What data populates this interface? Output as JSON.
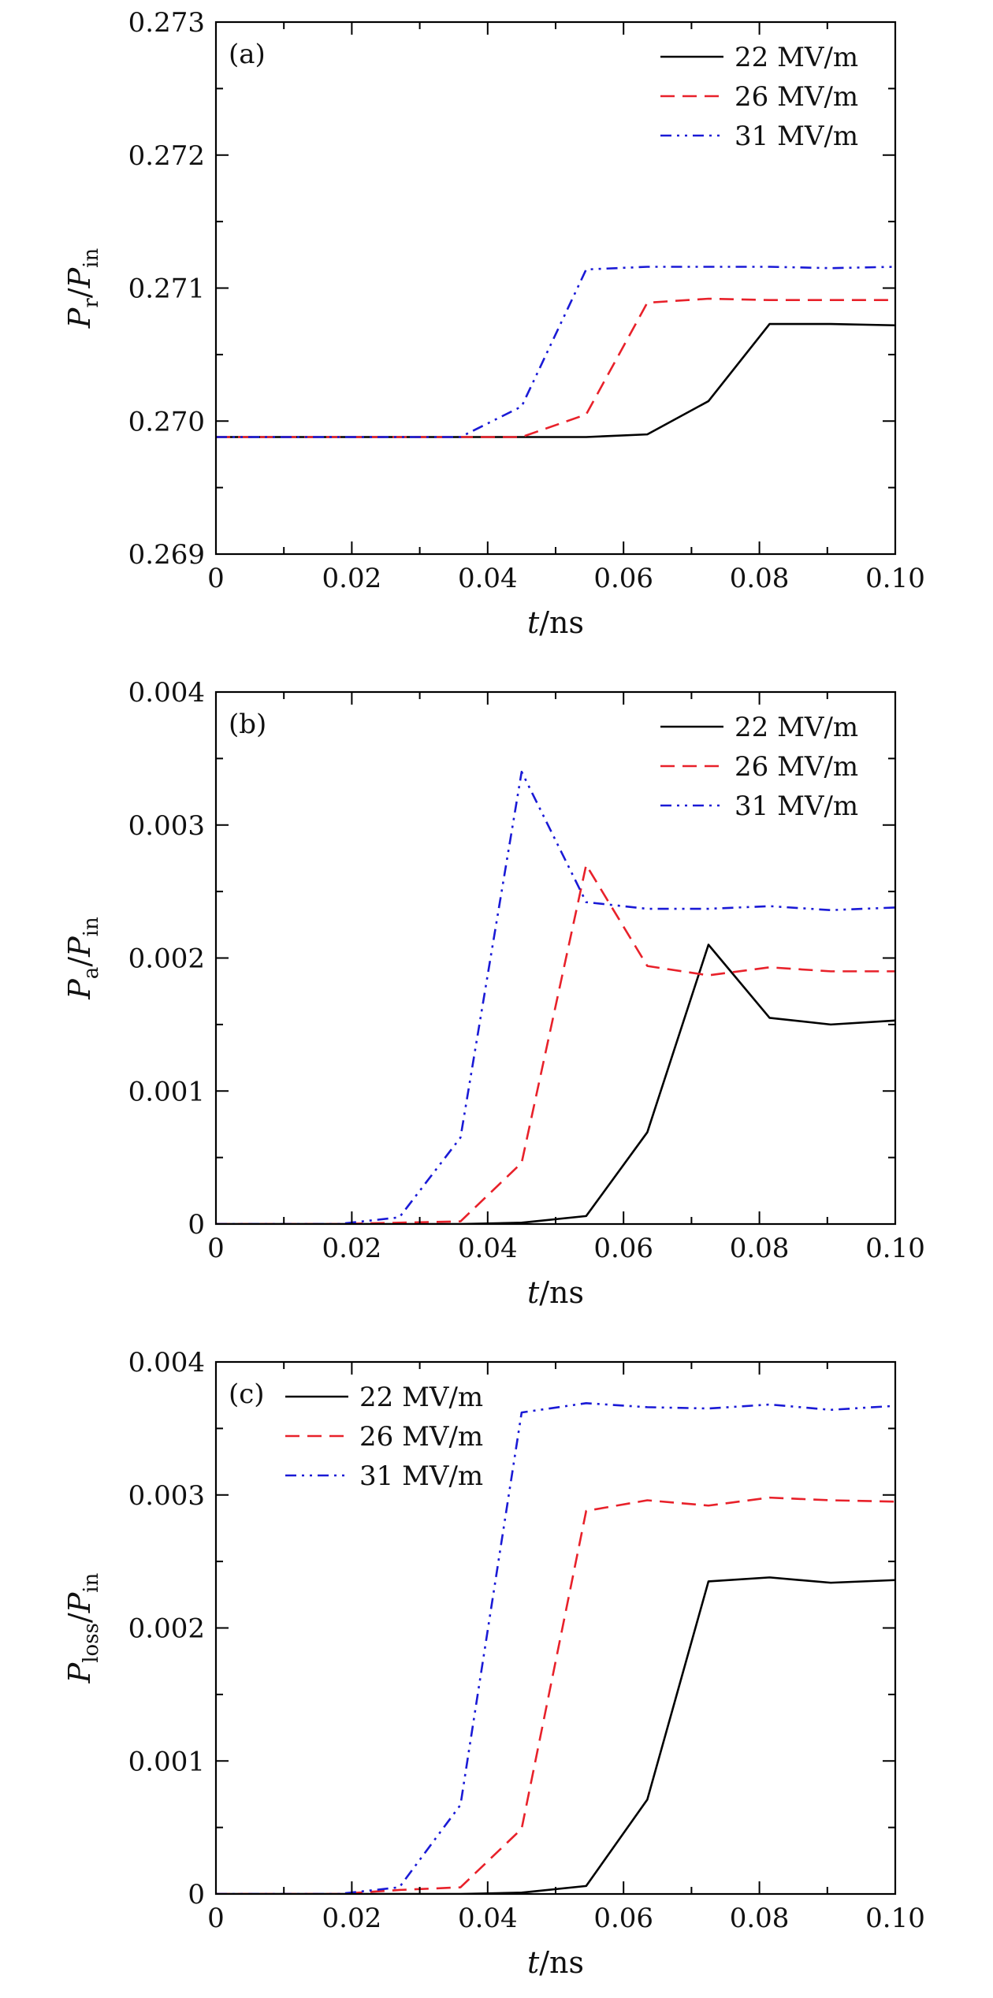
{
  "figure": {
    "background": "#ffffff",
    "axis_color": "#000000"
  },
  "chart_data": [
    {
      "type": "line",
      "panel": "(a)",
      "xlabel": {
        "var": "t",
        "unit": "/ns"
      },
      "ylabel": {
        "var": "P",
        "sub": "r",
        "mid": "/",
        "var2": "P",
        "sub2": "in"
      },
      "xlim": [
        0,
        0.1
      ],
      "ylim": [
        0.269,
        0.273
      ],
      "xticks": [
        "0",
        "0.02",
        "0.04",
        "0.06",
        "0.08",
        "0.10"
      ],
      "xtick_values": [
        0,
        0.02,
        0.04,
        0.06,
        0.08,
        0.1
      ],
      "yticks": [
        "0.269",
        "0.270",
        "0.271",
        "0.272",
        "0.273"
      ],
      "ytick_values": [
        0.269,
        0.27,
        0.271,
        0.272,
        0.273
      ],
      "legend_position": "top-right",
      "x": [
        0,
        0.009,
        0.018,
        0.027,
        0.036,
        0.045,
        0.0545,
        0.0635,
        0.0725,
        0.0815,
        0.0905,
        0.1
      ],
      "series": [
        {
          "name": "22 MV/m",
          "color": "#000000",
          "dash": "solid",
          "values": [
            0.26988,
            0.26988,
            0.26988,
            0.26988,
            0.26988,
            0.26988,
            0.26988,
            0.2699,
            0.27015,
            0.27073,
            0.27073,
            0.27072
          ]
        },
        {
          "name": "26 MV/m",
          "color": "#e8212a",
          "dash": "dash",
          "values": [
            0.26988,
            0.26988,
            0.26988,
            0.26988,
            0.26988,
            0.26988,
            0.27005,
            0.27089,
            0.27092,
            0.27091,
            0.27091,
            0.27091
          ]
        },
        {
          "name": "31 MV/m",
          "color": "#1a1ad6",
          "dash": "dashdotdot",
          "values": [
            0.26988,
            0.26988,
            0.26988,
            0.26988,
            0.26988,
            0.27011,
            0.27114,
            0.27116,
            0.27116,
            0.27116,
            0.27115,
            0.27116
          ]
        }
      ]
    },
    {
      "type": "line",
      "panel": "(b)",
      "xlabel": {
        "var": "t",
        "unit": "/ns"
      },
      "ylabel": {
        "var": "P",
        "sub": "a",
        "mid": "/",
        "var2": "P",
        "sub2": "in"
      },
      "xlim": [
        0,
        0.1
      ],
      "ylim": [
        0,
        0.004
      ],
      "xticks": [
        "0",
        "0.02",
        "0.04",
        "0.06",
        "0.08",
        "0.10"
      ],
      "xtick_values": [
        0,
        0.02,
        0.04,
        0.06,
        0.08,
        0.1
      ],
      "yticks": [
        "0",
        "0.001",
        "0.002",
        "0.003",
        "0.004"
      ],
      "ytick_values": [
        0,
        0.001,
        0.002,
        0.003,
        0.004
      ],
      "legend_position": "top-right",
      "x": [
        0,
        0.009,
        0.018,
        0.027,
        0.036,
        0.045,
        0.0545,
        0.0635,
        0.0725,
        0.0815,
        0.0905,
        0.1
      ],
      "series": [
        {
          "name": "22 MV/m",
          "color": "#000000",
          "dash": "solid",
          "values": [
            0,
            0,
            0,
            0,
            0,
            1e-05,
            6e-05,
            0.00069,
            0.0021,
            0.00155,
            0.0015,
            0.00153
          ]
        },
        {
          "name": "26 MV/m",
          "color": "#e8212a",
          "dash": "dash",
          "values": [
            0,
            0,
            0,
            1e-05,
            2e-05,
            0.00046,
            0.0027,
            0.00194,
            0.00187,
            0.00193,
            0.0019,
            0.0019
          ]
        },
        {
          "name": "31 MV/m",
          "color": "#1a1ad6",
          "dash": "dashdotdot",
          "values": [
            0,
            0,
            0,
            5e-05,
            0.00065,
            0.0034,
            0.00242,
            0.00237,
            0.00237,
            0.00239,
            0.00236,
            0.00238
          ]
        }
      ]
    },
    {
      "type": "line",
      "panel": "(c)",
      "xlabel": {
        "var": "t",
        "unit": "/ns"
      },
      "ylabel": {
        "var": "P",
        "sub": "loss",
        "mid": "/",
        "var2": "P",
        "sub2": "in"
      },
      "xlim": [
        0,
        0.1
      ],
      "ylim": [
        0,
        0.004
      ],
      "xticks": [
        "0",
        "0.02",
        "0.04",
        "0.06",
        "0.08",
        "0.10"
      ],
      "xtick_values": [
        0,
        0.02,
        0.04,
        0.06,
        0.08,
        0.1
      ],
      "yticks": [
        "0",
        "0.001",
        "0.002",
        "0.003",
        "0.004"
      ],
      "ytick_values": [
        0,
        0.001,
        0.002,
        0.003,
        0.004
      ],
      "legend_position": "top-left",
      "x": [
        0,
        0.009,
        0.018,
        0.027,
        0.036,
        0.045,
        0.0545,
        0.0635,
        0.0725,
        0.0815,
        0.0905,
        0.1
      ],
      "series": [
        {
          "name": "22 MV/m",
          "color": "#000000",
          "dash": "solid",
          "values": [
            0,
            0,
            0,
            0,
            0,
            1e-05,
            6e-05,
            0.00071,
            0.00235,
            0.00238,
            0.00234,
            0.00236
          ]
        },
        {
          "name": "26 MV/m",
          "color": "#e8212a",
          "dash": "dash",
          "values": [
            0,
            0,
            0,
            3e-05,
            5e-05,
            0.00049,
            0.00288,
            0.00296,
            0.00292,
            0.00298,
            0.00296,
            0.00295
          ]
        },
        {
          "name": "31 MV/m",
          "color": "#1a1ad6",
          "dash": "dashdotdot",
          "values": [
            0,
            0,
            0,
            5e-05,
            0.00067,
            0.00362,
            0.00369,
            0.00366,
            0.00365,
            0.00368,
            0.00364,
            0.00367
          ]
        }
      ]
    }
  ]
}
